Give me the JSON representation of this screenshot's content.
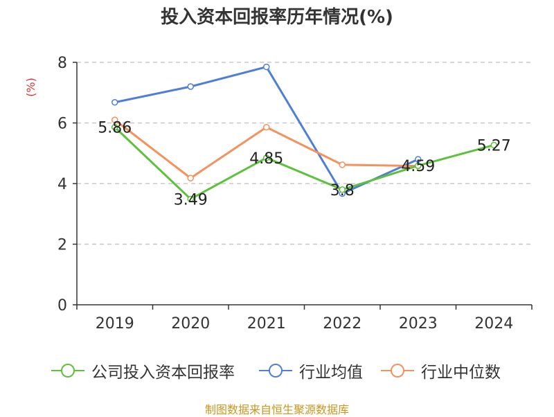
{
  "chart_data": {
    "type": "line",
    "title": "投入资本回报率历年情况(%)",
    "ylabel": "(%)",
    "xlabel": "",
    "categories": [
      "2019",
      "2020",
      "2021",
      "2022",
      "2023",
      "2024"
    ],
    "ylim": [
      0,
      8
    ],
    "yticks": [
      0,
      2,
      4,
      6,
      8
    ],
    "grid": true,
    "legend_position": "bottom",
    "series": [
      {
        "name": "公司投入资本回报率",
        "color": "#5cc23a",
        "values": [
          5.86,
          3.49,
          4.85,
          3.8,
          4.59,
          5.27
        ],
        "labels": [
          "5.86",
          "3.49",
          "4.85",
          "3.8",
          "4.59",
          "5.27"
        ]
      },
      {
        "name": "行业均值",
        "color": "#4d7fd8",
        "values": [
          6.68,
          7.2,
          7.85,
          3.67,
          4.8,
          null
        ]
      },
      {
        "name": "行业中位数",
        "color": "#f5915a",
        "values": [
          6.1,
          4.18,
          5.86,
          4.62,
          4.58,
          null
        ]
      }
    ]
  },
  "source_note": "制图数据来自恒生聚源数据库"
}
